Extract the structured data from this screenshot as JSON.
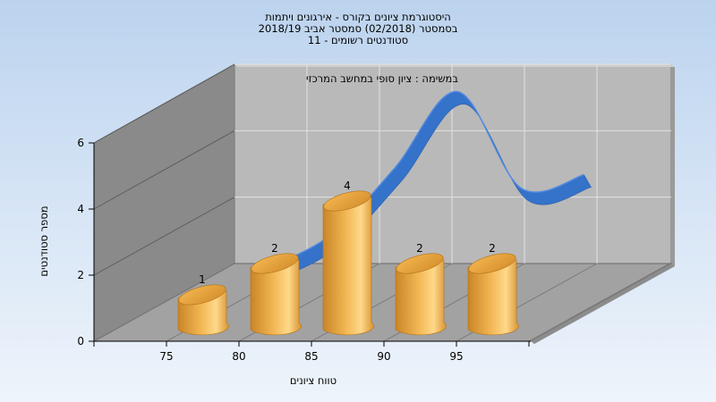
{
  "chart_data": {
    "type": "bar",
    "title": "היסטוגרמת ציונים בקורס - אירגונים ויתמות",
    "subtitle1": "בסמסטר  (02/2018)  סמסטר אביב 2018/19",
    "subtitle2": "סטודנטים רשומים - 11",
    "annotation": "במשימה : ציון סופי במחשב המרכזי",
    "xlabel": "טווח ציונים",
    "ylabel": "מספר סטודנטים",
    "categories": [
      "75",
      "80",
      "85",
      "90",
      "95"
    ],
    "values": [
      1,
      2,
      4,
      2,
      2
    ],
    "data_labels": [
      "1",
      "2",
      "4",
      "2",
      "2"
    ],
    "y_ticks": [
      "0",
      "2",
      "4",
      "6"
    ],
    "ylim": [
      0,
      6
    ],
    "curve_values": [
      0.6,
      1.6,
      3.6,
      5.9,
      3.0,
      3.4
    ],
    "grid": true,
    "colors": {
      "bar": "#e8a33c",
      "bar_light": "#ffd98a",
      "bar_dark": "#c77d1e",
      "curve": "#2f6fc9",
      "wall_back": "#b9b9b9",
      "wall_left": "#8a8a8a",
      "floor": "#a2a2a2"
    }
  }
}
